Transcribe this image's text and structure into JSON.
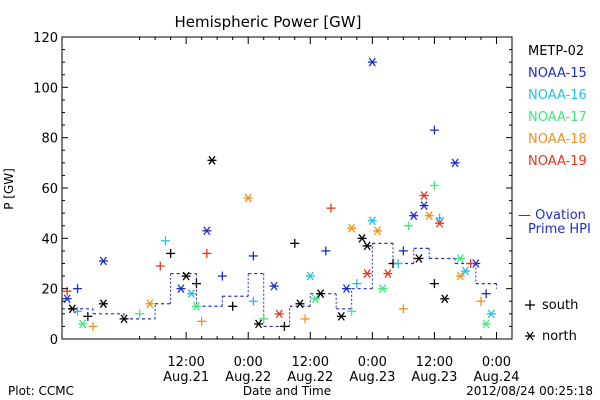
{
  "chart_data": {
    "type": "scatter",
    "title": "Hemispheric Power [GW]",
    "ylabel": "P [GW]",
    "xlabel": "Date and Time",
    "ylim": [
      0,
      120
    ],
    "yticks": [
      0,
      20,
      40,
      60,
      80,
      100,
      120
    ],
    "xlim": [
      "2012-08-20 12:00",
      "2012-08-24 03:00"
    ],
    "xticks": [
      {
        "t": "2012-08-21 12:00",
        "time": "12:00",
        "date": "Aug.21"
      },
      {
        "t": "2012-08-22 00:00",
        "time": "0:00",
        "date": "Aug.22"
      },
      {
        "t": "2012-08-22 12:00",
        "time": "12:00",
        "date": "Aug.22"
      },
      {
        "t": "2012-08-23 00:00",
        "time": "0:00",
        "date": "Aug.23"
      },
      {
        "t": "2012-08-23 12:00",
        "time": "12:00",
        "date": "Aug.23"
      },
      {
        "t": "2012-08-24 00:00",
        "time": "0:00",
        "date": "Aug.24"
      }
    ],
    "legend_position": "right",
    "series": [
      {
        "name": "METP-02",
        "color": "#000000",
        "points": [
          {
            "t": "2012-08-20 14:00",
            "y": 12,
            "hemi": "north"
          },
          {
            "t": "2012-08-20 17:00",
            "y": 9,
            "hemi": "south"
          },
          {
            "t": "2012-08-20 20:00",
            "y": 14,
            "hemi": "north"
          },
          {
            "t": "2012-08-21 00:00",
            "y": 8,
            "hemi": "north"
          },
          {
            "t": "2012-08-21 09:00",
            "y": 34,
            "hemi": "south"
          },
          {
            "t": "2012-08-21 12:00",
            "y": 25,
            "hemi": "north"
          },
          {
            "t": "2012-08-21 14:00",
            "y": 22,
            "hemi": "south"
          },
          {
            "t": "2012-08-21 17:00",
            "y": 71,
            "hemi": "north"
          },
          {
            "t": "2012-08-21 21:00",
            "y": 13,
            "hemi": "south"
          },
          {
            "t": "2012-08-22 02:00",
            "y": 6,
            "hemi": "north"
          },
          {
            "t": "2012-08-22 07:00",
            "y": 5,
            "hemi": "south"
          },
          {
            "t": "2012-08-22 09:00",
            "y": 38,
            "hemi": "south"
          },
          {
            "t": "2012-08-22 10:00",
            "y": 14,
            "hemi": "north"
          },
          {
            "t": "2012-08-22 14:00",
            "y": 18,
            "hemi": "north"
          },
          {
            "t": "2012-08-22 18:00",
            "y": 9,
            "hemi": "north"
          },
          {
            "t": "2012-08-22 22:00",
            "y": 40,
            "hemi": "north"
          },
          {
            "t": "2012-08-22 23:00",
            "y": 37,
            "hemi": "north"
          },
          {
            "t": "2012-08-23 04:00",
            "y": 30,
            "hemi": "south"
          },
          {
            "t": "2012-08-23 09:00",
            "y": 32,
            "hemi": "north"
          },
          {
            "t": "2012-08-23 12:00",
            "y": 22,
            "hemi": "south"
          },
          {
            "t": "2012-08-23 14:00",
            "y": 16,
            "hemi": "north"
          }
        ]
      },
      {
        "name": "NOAA-15",
        "color": "#1c2dc8",
        "points": [
          {
            "t": "2012-08-20 13:00",
            "y": 16,
            "hemi": "north"
          },
          {
            "t": "2012-08-20 15:00",
            "y": 20,
            "hemi": "south"
          },
          {
            "t": "2012-08-20 20:00",
            "y": 31,
            "hemi": "north"
          },
          {
            "t": "2012-08-21 11:00",
            "y": 20,
            "hemi": "north"
          },
          {
            "t": "2012-08-21 16:00",
            "y": 43,
            "hemi": "north"
          },
          {
            "t": "2012-08-21 19:00",
            "y": 25,
            "hemi": "south"
          },
          {
            "t": "2012-08-22 01:00",
            "y": 33,
            "hemi": "south"
          },
          {
            "t": "2012-08-22 05:00",
            "y": 21,
            "hemi": "north"
          },
          {
            "t": "2012-08-22 15:00",
            "y": 35,
            "hemi": "south"
          },
          {
            "t": "2012-08-22 19:00",
            "y": 20,
            "hemi": "north"
          },
          {
            "t": "2012-08-23 00:00",
            "y": 110,
            "hemi": "north"
          },
          {
            "t": "2012-08-23 06:00",
            "y": 35,
            "hemi": "south"
          },
          {
            "t": "2012-08-23 08:00",
            "y": 49,
            "hemi": "north"
          },
          {
            "t": "2012-08-23 10:00",
            "y": 53,
            "hemi": "north"
          },
          {
            "t": "2012-08-23 12:00",
            "y": 83,
            "hemi": "south"
          },
          {
            "t": "2012-08-23 16:00",
            "y": 70,
            "hemi": "north"
          },
          {
            "t": "2012-08-23 20:00",
            "y": 30,
            "hemi": "north"
          },
          {
            "t": "2012-08-23 22:00",
            "y": 18,
            "hemi": "south"
          }
        ]
      },
      {
        "name": "NOAA-16",
        "color": "#22c0e8",
        "points": [
          {
            "t": "2012-08-20 15:00",
            "y": 11,
            "hemi": "south"
          },
          {
            "t": "2012-08-21 08:00",
            "y": 39,
            "hemi": "south"
          },
          {
            "t": "2012-08-21 13:00",
            "y": 18,
            "hemi": "north"
          },
          {
            "t": "2012-08-22 01:00",
            "y": 15,
            "hemi": "south"
          },
          {
            "t": "2012-08-22 12:00",
            "y": 25,
            "hemi": "north"
          },
          {
            "t": "2012-08-22 21:00",
            "y": 22,
            "hemi": "south"
          },
          {
            "t": "2012-08-23 00:00",
            "y": 47,
            "hemi": "north"
          },
          {
            "t": "2012-08-23 05:00",
            "y": 30,
            "hemi": "south"
          },
          {
            "t": "2012-08-23 13:00",
            "y": 48,
            "hemi": "south"
          },
          {
            "t": "2012-08-23 18:00",
            "y": 27,
            "hemi": "north"
          },
          {
            "t": "2012-08-23 23:00",
            "y": 10,
            "hemi": "north"
          }
        ]
      },
      {
        "name": "NOAA-17",
        "color": "#3ee87a",
        "points": [
          {
            "t": "2012-08-20 16:00",
            "y": 6,
            "hemi": "north"
          },
          {
            "t": "2012-08-21 03:00",
            "y": 10,
            "hemi": "south"
          },
          {
            "t": "2012-08-21 14:00",
            "y": 13,
            "hemi": "north"
          },
          {
            "t": "2012-08-22 03:00",
            "y": 8,
            "hemi": "south"
          },
          {
            "t": "2012-08-22 13:00",
            "y": 16,
            "hemi": "north"
          },
          {
            "t": "2012-08-22 20:00",
            "y": 11,
            "hemi": "south"
          },
          {
            "t": "2012-08-23 02:00",
            "y": 20,
            "hemi": "north"
          },
          {
            "t": "2012-08-23 07:00",
            "y": 45,
            "hemi": "south"
          },
          {
            "t": "2012-08-23 12:00",
            "y": 61,
            "hemi": "south"
          },
          {
            "t": "2012-08-23 17:00",
            "y": 32,
            "hemi": "north"
          },
          {
            "t": "2012-08-23 22:00",
            "y": 6,
            "hemi": "north"
          }
        ]
      },
      {
        "name": "NOAA-18",
        "color": "#f3901a",
        "points": [
          {
            "t": "2012-08-20 18:00",
            "y": 5,
            "hemi": "south"
          },
          {
            "t": "2012-08-21 05:00",
            "y": 14,
            "hemi": "north"
          },
          {
            "t": "2012-08-21 15:00",
            "y": 7,
            "hemi": "south"
          },
          {
            "t": "2012-08-22 00:00",
            "y": 56,
            "hemi": "north"
          },
          {
            "t": "2012-08-22 11:00",
            "y": 8,
            "hemi": "south"
          },
          {
            "t": "2012-08-22 20:00",
            "y": 44,
            "hemi": "north"
          },
          {
            "t": "2012-08-23 01:00",
            "y": 43,
            "hemi": "north"
          },
          {
            "t": "2012-08-23 06:00",
            "y": 12,
            "hemi": "south"
          },
          {
            "t": "2012-08-23 11:00",
            "y": 49,
            "hemi": "north"
          },
          {
            "t": "2012-08-23 17:00",
            "y": 25,
            "hemi": "north"
          },
          {
            "t": "2012-08-23 21:00",
            "y": 15,
            "hemi": "south"
          }
        ]
      },
      {
        "name": "NOAA-19",
        "color": "#e8361f",
        "points": [
          {
            "t": "2012-08-20 13:00",
            "y": 19,
            "hemi": "south"
          },
          {
            "t": "2012-08-21 07:00",
            "y": 29,
            "hemi": "south"
          },
          {
            "t": "2012-08-21 16:00",
            "y": 34,
            "hemi": "south"
          },
          {
            "t": "2012-08-22 06:00",
            "y": 10,
            "hemi": "north"
          },
          {
            "t": "2012-08-22 16:00",
            "y": 52,
            "hemi": "south"
          },
          {
            "t": "2012-08-22 23:00",
            "y": 26,
            "hemi": "north"
          },
          {
            "t": "2012-08-23 03:00",
            "y": 26,
            "hemi": "north"
          },
          {
            "t": "2012-08-23 10:00",
            "y": 57,
            "hemi": "north"
          },
          {
            "t": "2012-08-23 13:00",
            "y": 46,
            "hemi": "north"
          },
          {
            "t": "2012-08-23 19:00",
            "y": 30,
            "hemi": "south"
          }
        ]
      }
    ],
    "ovation": {
      "name": "Ovation Prime HPI",
      "label_line1": "— Ovation",
      "label_line2": "Prime HPI",
      "color": "#1c2dc8",
      "points": [
        {
          "t": "2012-08-20 12:00",
          "y": 12
        },
        {
          "t": "2012-08-20 18:00",
          "y": 10
        },
        {
          "t": "2012-08-21 00:00",
          "y": 8
        },
        {
          "t": "2012-08-21 06:00",
          "y": 14
        },
        {
          "t": "2012-08-21 09:00",
          "y": 26
        },
        {
          "t": "2012-08-21 14:00",
          "y": 13
        },
        {
          "t": "2012-08-21 19:00",
          "y": 17
        },
        {
          "t": "2012-08-22 00:00",
          "y": 26
        },
        {
          "t": "2012-08-22 03:00",
          "y": 5
        },
        {
          "t": "2012-08-22 08:00",
          "y": 13
        },
        {
          "t": "2012-08-22 12:00",
          "y": 18
        },
        {
          "t": "2012-08-22 17:00",
          "y": 12
        },
        {
          "t": "2012-08-22 20:00",
          "y": 20
        },
        {
          "t": "2012-08-23 00:00",
          "y": 38
        },
        {
          "t": "2012-08-23 04:00",
          "y": 30
        },
        {
          "t": "2012-08-23 08:00",
          "y": 36
        },
        {
          "t": "2012-08-23 11:00",
          "y": 32
        },
        {
          "t": "2012-08-23 16:00",
          "y": 30
        },
        {
          "t": "2012-08-23 20:00",
          "y": 22
        },
        {
          "t": "2012-08-24 00:00",
          "y": 20
        }
      ]
    },
    "hemisphere_key": [
      {
        "symbol": "+",
        "label": "south"
      },
      {
        "symbol": "*",
        "label": "north"
      }
    ]
  },
  "footer": {
    "plot_credit": "Plot: CCMC",
    "timestamp": "2012/08/24 00:25:18"
  }
}
